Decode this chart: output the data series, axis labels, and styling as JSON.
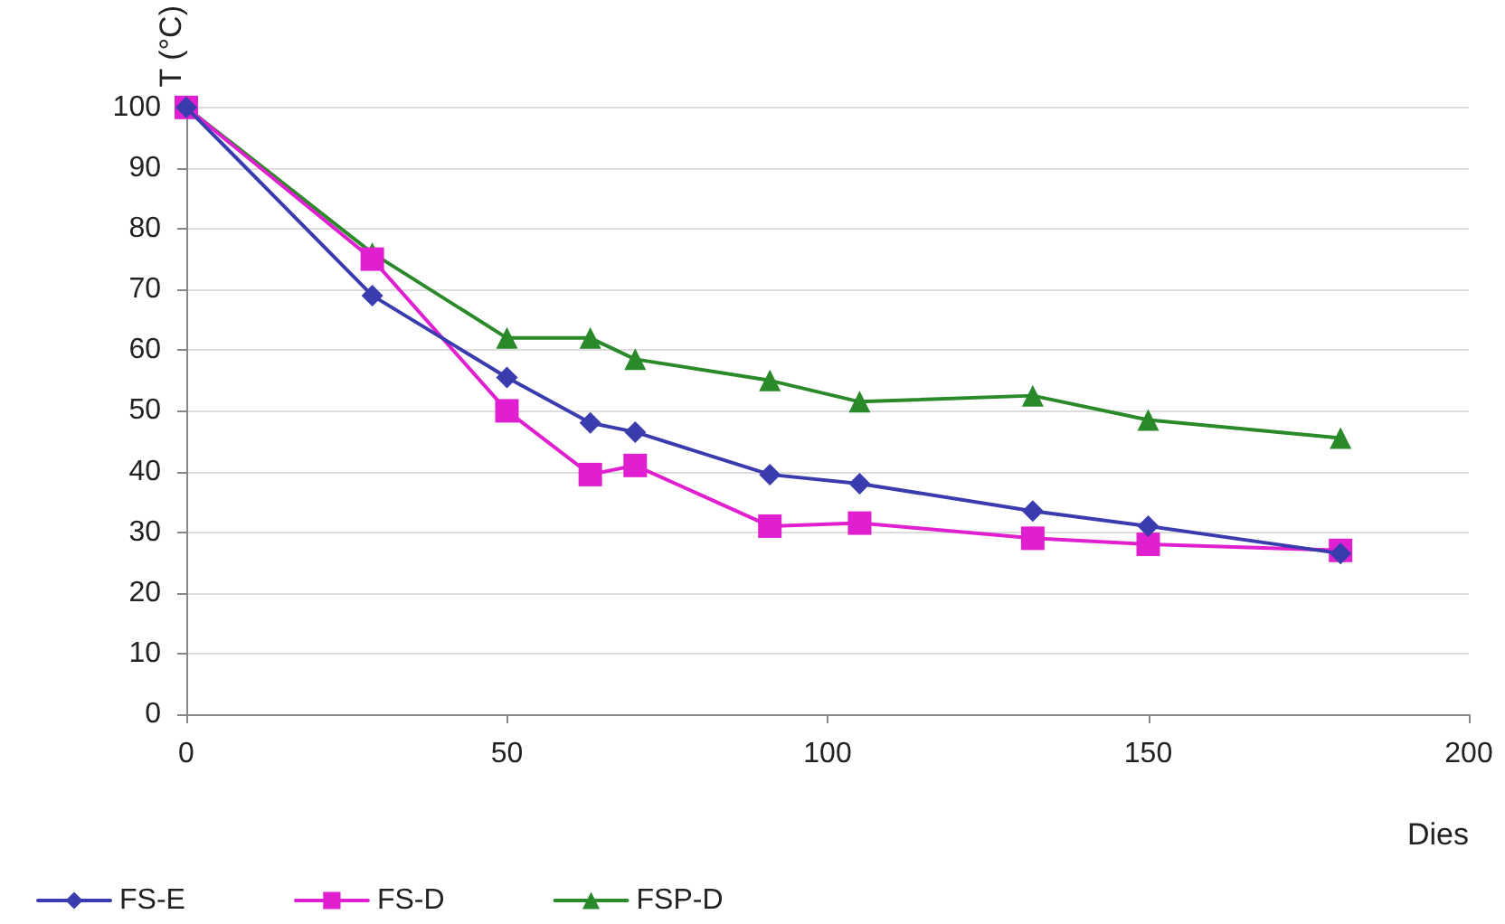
{
  "chart_data": {
    "type": "line",
    "xlabel": "Dies",
    "ylabel": "T (°C)",
    "x": [
      0,
      29,
      50,
      63,
      70,
      91,
      105,
      132,
      150,
      180
    ],
    "series": [
      {
        "name": "FS-E",
        "color": "#3b3bb0",
        "marker": "diamond",
        "values": [
          100,
          69,
          55.5,
          48,
          46.5,
          39.5,
          38,
          33.5,
          31,
          26.5
        ]
      },
      {
        "name": "FS-D",
        "color": "#e020d0",
        "marker": "square",
        "values": [
          100,
          75,
          50,
          39.5,
          41,
          31,
          31.5,
          29,
          28,
          27
        ]
      },
      {
        "name": "FSP-D",
        "color": "#2a8a2a",
        "marker": "triangle",
        "values": [
          100,
          76,
          62,
          62,
          58.5,
          55,
          51.5,
          52.5,
          48.5,
          45.5
        ]
      }
    ],
    "xlim": [
      0,
      200
    ],
    "xticks": [
      0,
      50,
      100,
      150,
      200
    ],
    "ylim": [
      0,
      100
    ],
    "yticks": [
      0,
      10,
      20,
      30,
      40,
      50,
      60,
      70,
      80,
      90,
      100
    ],
    "grid": "y",
    "legend": "bottom left",
    "line_style": "solid"
  }
}
